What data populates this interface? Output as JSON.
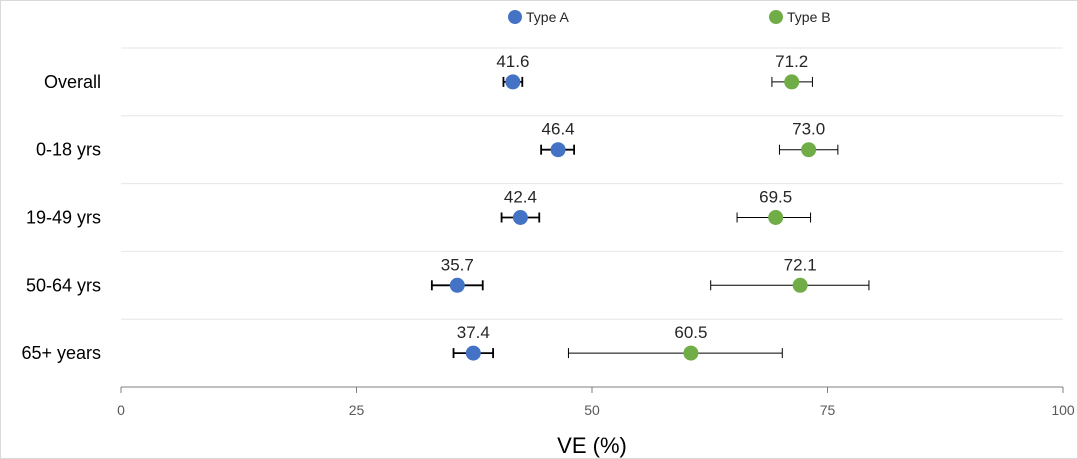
{
  "chart_data": {
    "type": "scatter",
    "title": "",
    "xlabel": "VE (%)",
    "ylabel": "",
    "xlim": [
      0,
      100
    ],
    "xticks": [
      0,
      25,
      50,
      75,
      100
    ],
    "grid": "horizontal",
    "legend_position": "top-center",
    "categories": [
      "Overall",
      "0-18 yrs",
      "19-49 yrs",
      "50-64 yrs",
      "65+ years"
    ],
    "series": [
      {
        "name": "Type A",
        "color": "#4472c4",
        "values": [
          41.6,
          46.4,
          42.4,
          35.7,
          37.4
        ],
        "labels": [
          "41.6",
          "46.4",
          "42.4",
          "35.7",
          "37.4"
        ],
        "ci_low": [
          40.6,
          44.6,
          40.4,
          33.0,
          35.3
        ],
        "ci_high": [
          42.6,
          48.1,
          44.4,
          38.4,
          39.5
        ]
      },
      {
        "name": "Type B",
        "color": "#70ad47",
        "values": [
          71.2,
          73.0,
          69.5,
          72.1,
          60.5
        ],
        "labels": [
          "71.2",
          "73.0",
          "69.5",
          "72.1",
          "60.5"
        ],
        "ci_low": [
          69.1,
          69.9,
          65.4,
          62.6,
          47.5
        ],
        "ci_high": [
          73.4,
          76.1,
          73.2,
          79.4,
          70.2
        ]
      }
    ]
  }
}
